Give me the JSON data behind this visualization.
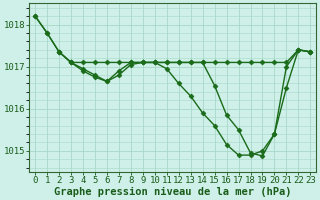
{
  "title": "Graphe pression niveau de la mer (hPa)",
  "xlabel_hours": [
    0,
    1,
    2,
    3,
    4,
    5,
    6,
    7,
    8,
    9,
    10,
    11,
    12,
    13,
    14,
    15,
    16,
    17,
    18,
    19,
    20,
    21,
    22,
    23
  ],
  "series": [
    {
      "name": "line_flat_top",
      "x": [
        0,
        1,
        2,
        3,
        4,
        5,
        6,
        7,
        8,
        9,
        10,
        11,
        12,
        13,
        14,
        15,
        16,
        17,
        18,
        19,
        20,
        21,
        22,
        23
      ],
      "y": [
        1018.2,
        1017.8,
        1017.35,
        1017.1,
        1017.1,
        1017.1,
        1017.1,
        1017.1,
        1017.1,
        1017.1,
        1017.1,
        1017.1,
        1017.1,
        1017.1,
        1017.1,
        1017.1,
        1017.1,
        1017.1,
        1017.1,
        1017.1,
        1017.1,
        1017.1,
        1017.4,
        1017.35
      ]
    },
    {
      "name": "line_descend",
      "x": [
        0,
        1,
        2,
        3,
        4,
        5,
        6,
        7,
        8,
        9,
        10,
        11,
        12,
        13,
        14,
        15,
        16,
        17,
        18,
        19,
        20,
        21,
        22,
        23
      ],
      "y": [
        1018.2,
        1017.8,
        1017.35,
        1017.1,
        1016.95,
        1016.8,
        1016.65,
        1016.8,
        1017.05,
        1017.1,
        1017.1,
        1016.95,
        1016.6,
        1016.3,
        1015.9,
        1015.6,
        1015.15,
        1014.9,
        1014.9,
        1015.0,
        1015.4,
        1017.0,
        1017.4,
        1017.35
      ]
    },
    {
      "name": "line_cross",
      "x": [
        2,
        3,
        4,
        5,
        6,
        7,
        8,
        9,
        10,
        11,
        12,
        13,
        14,
        15,
        16,
        17,
        18,
        19,
        20,
        21,
        22,
        23
      ],
      "y": [
        1017.35,
        1017.1,
        1016.9,
        1016.75,
        1016.65,
        1016.9,
        1017.1,
        1017.1,
        1017.1,
        1017.1,
        1017.1,
        1017.1,
        1017.1,
        1016.55,
        1015.85,
        1015.5,
        1014.95,
        1014.88,
        1015.4,
        1016.5,
        1017.4,
        1017.35
      ]
    }
  ],
  "line_color": "#1a6b1a",
  "marker": "D",
  "markersize": 2.5,
  "linewidth": 1.0,
  "bg_color": "#cef0e8",
  "plot_bg_color": "#cef0e8",
  "grid_color": "#a8d8c8",
  "ylim": [
    1014.5,
    1018.5
  ],
  "yticks": [
    1015,
    1016,
    1017,
    1018
  ],
  "title_color": "#1a5c1a",
  "title_fontsize": 7.5,
  "tick_fontsize": 6.5,
  "spine_color": "#336633"
}
